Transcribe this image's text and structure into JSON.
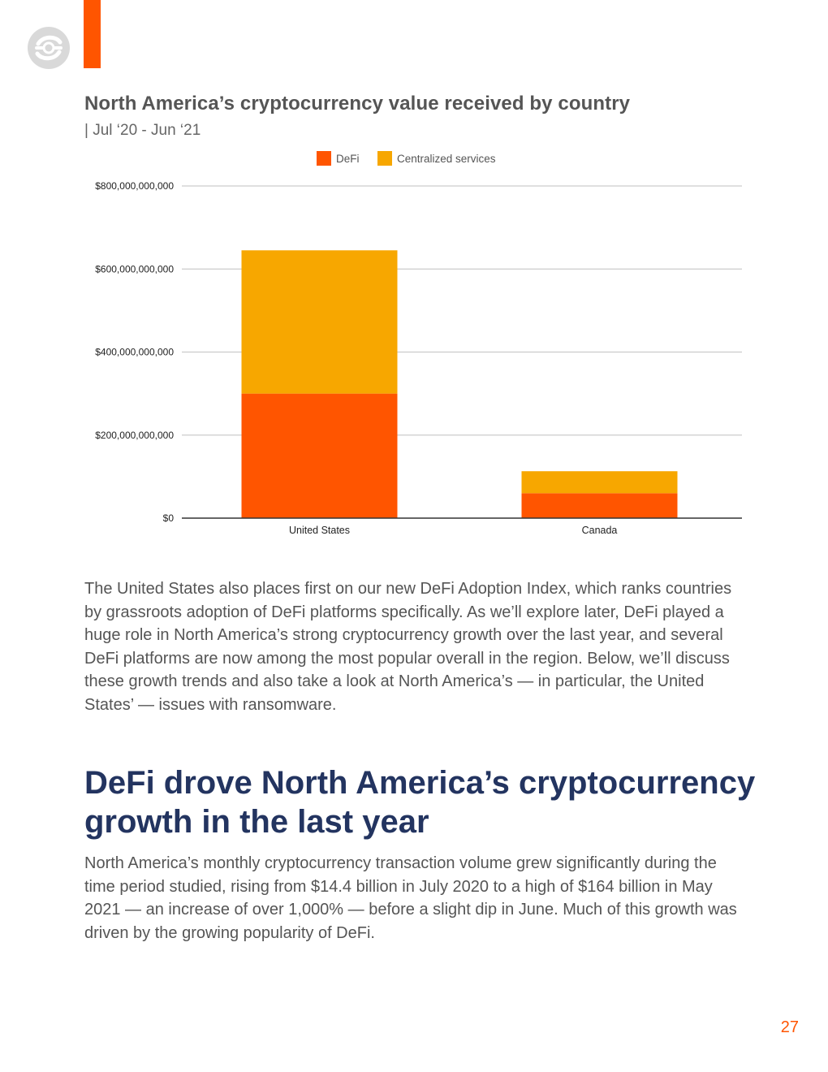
{
  "page": {
    "number": "27"
  },
  "colors": {
    "defi": "#ff5500",
    "centralized": "#f7a700",
    "heading": "#233460",
    "accent": "#ff5500"
  },
  "chart_data": {
    "type": "bar",
    "stacked": true,
    "title": "North America’s cryptocurrency value received by country",
    "subtitle": "| Jul ‘20 - Jun ‘21",
    "categories": [
      "United States",
      "Canada"
    ],
    "series": [
      {
        "name": "DeFi",
        "color": "#ff5500",
        "values": [
          300000000000,
          60000000000
        ]
      },
      {
        "name": "Centralized services",
        "color": "#f7a700",
        "values": [
          345000000000,
          53000000000
        ]
      }
    ],
    "ylim": [
      0,
      800000000000
    ],
    "yticks": [
      0,
      200000000000,
      400000000000,
      600000000000,
      800000000000
    ],
    "ytick_labels": [
      "$0",
      "$200,000,000,000",
      "$400,000,000,000",
      "$600,000,000,000",
      "$800,000,000,000"
    ],
    "xlabel": "",
    "ylabel": "",
    "grid": true,
    "legend": "top-center"
  },
  "paragraphs": {
    "intro": "The United States also places first on our new DeFi Adoption Index, which ranks countries by grassroots adoption of DeFi platforms specifically. As we’ll explore later, DeFi played a huge role in North America’s strong cryptocurrency growth over the last year, and several DeFi platforms are now among the most popular overall in the region. Below, we’ll discuss these growth trends and also take a look at North America’s — in particular, the United States’ — issues with ransomware.",
    "section_heading": "DeFi drove North America’s cryptocurrency growth in the last year",
    "section_body": "North America’s monthly cryptocurrency transaction volume grew significantly during the time period studied, rising from $14.4 billion in July 2020 to a high of $164 billion in May 2021 — an increase of over 1,000% — before a slight dip in June. Much of this growth was driven by the growing popularity of DeFi."
  }
}
